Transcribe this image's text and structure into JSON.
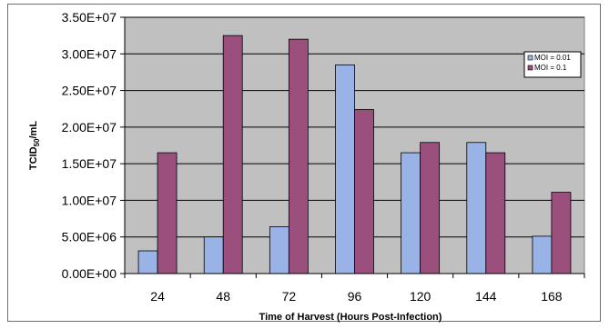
{
  "chart_data": {
    "type": "bar",
    "categories": [
      "24",
      "48",
      "72",
      "96",
      "120",
      "144",
      "168"
    ],
    "series": [
      {
        "name": "MOI = 0.01",
        "color": "#99b3e6",
        "values": [
          3100000,
          5000000,
          6400000,
          28500000,
          16500000,
          17900000,
          5100000
        ]
      },
      {
        "name": "MOI = 0.1",
        "color": "#9b4f7c",
        "values": [
          16500000,
          32500000,
          32000000,
          22400000,
          17900000,
          16500000,
          11100000
        ]
      }
    ],
    "yticks": [
      "0.00E+00",
      "5.00E+06",
      "1.00E+07",
      "1.50E+07",
      "2.00E+07",
      "2.50E+07",
      "3.00E+07",
      "3.50E+07"
    ],
    "ylim": [
      0,
      35000000
    ],
    "ytick_step": 5000000,
    "xlabel": "Time of Harvest (Hours Post-Infection)",
    "ylabel_main": "TCID",
    "ylabel_sub": "50",
    "ylabel_suffix": "/mL",
    "grid": true,
    "legend_position": "top-right",
    "plot_background": "#c0c0c0",
    "gridline_color": "#000000"
  }
}
